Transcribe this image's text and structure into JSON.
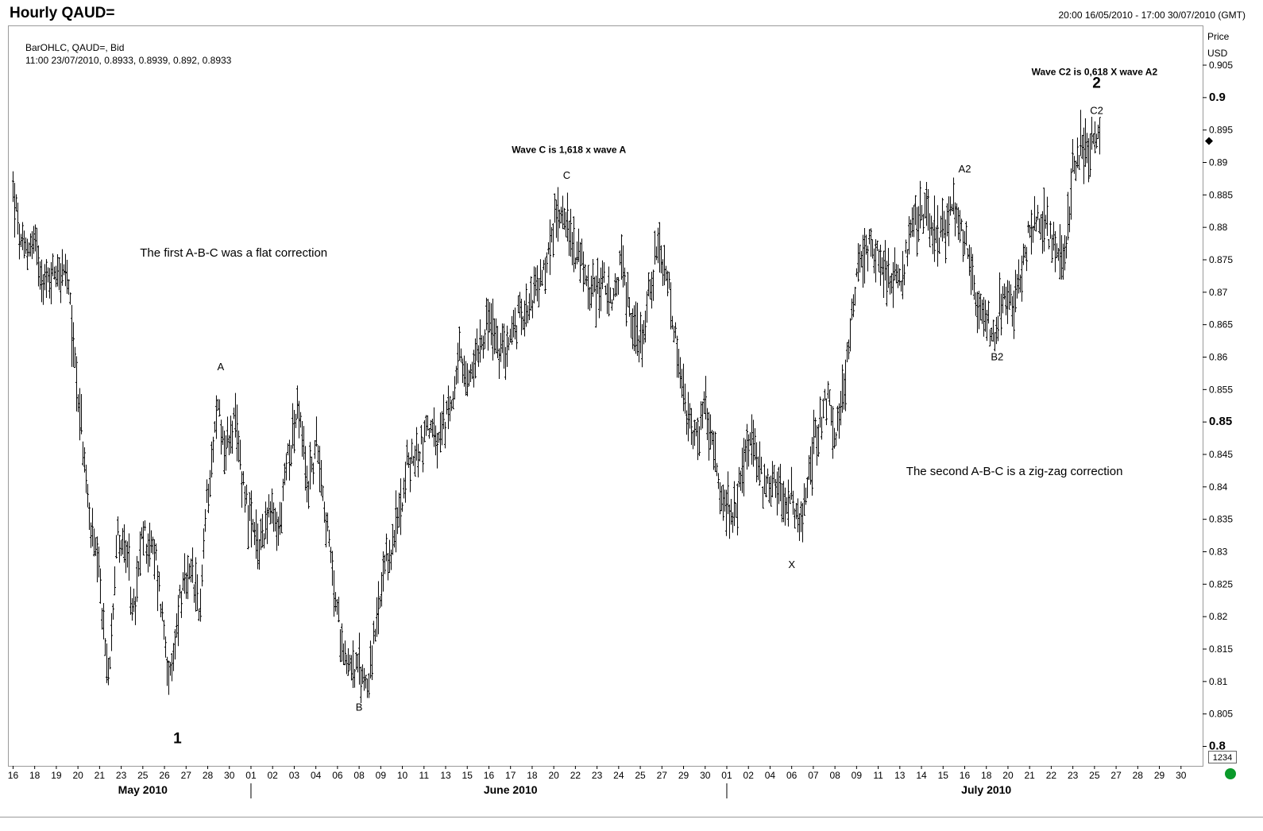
{
  "header": {
    "title": "Hourly QAUD=",
    "date_range": "20:00 16/05/2010 - 17:00 30/07/2010 (GMT)"
  },
  "legend": {
    "line1": "BarOHLC, QAUD=, Bid",
    "line2": "11:00 23/07/2010, 0.8933, 0.8939, 0.892, 0.8933"
  },
  "price_axis": {
    "label": "Price",
    "unit": "USD"
  },
  "cursor_box": "1234",
  "colors": {
    "bars": "#000000",
    "frame": "#9a9a9a",
    "status": "#0a9a2a"
  },
  "icons": [
    "last-price-marker-icon",
    "status-dot-icon"
  ],
  "chart_data": {
    "type": "ohlc",
    "title": "Hourly QAUD=",
    "xlabel": "",
    "ylabel": "Price USD",
    "ylim": [
      0.797,
      0.911
    ],
    "y_ticks": [
      0.8,
      0.805,
      0.81,
      0.815,
      0.82,
      0.825,
      0.83,
      0.835,
      0.84,
      0.845,
      0.85,
      0.855,
      0.86,
      0.865,
      0.87,
      0.875,
      0.88,
      0.885,
      0.89,
      0.895,
      0.9,
      0.905
    ],
    "y_tick_labels": [
      "0.8",
      "0.805",
      "0.81",
      "0.815",
      "0.82",
      "0.825",
      "0.83",
      "0.835",
      "0.84",
      "0.845",
      "0.85",
      "0.855",
      "0.86",
      "0.865",
      "0.87",
      "0.875",
      "0.88",
      "0.885",
      "0.89",
      "0.895",
      "0.9",
      "0.905"
    ],
    "y_bold_ticks": [
      0.8,
      0.85,
      0.9
    ],
    "x_ticks": [
      {
        "day": 16,
        "label": "16"
      },
      {
        "day": 17,
        "label": "18"
      },
      {
        "day": 18,
        "label": "19"
      },
      {
        "day": 19,
        "label": "20"
      },
      {
        "day": 20,
        "label": "21"
      },
      {
        "day": 21,
        "label": "23"
      },
      {
        "day": 22,
        "label": "25"
      },
      {
        "day": 23,
        "label": "26"
      },
      {
        "day": 24,
        "label": "27"
      },
      {
        "day": 25,
        "label": "28"
      },
      {
        "day": 26,
        "label": "30"
      },
      {
        "day": 27,
        "label": "01"
      },
      {
        "day": 28,
        "label": "02"
      },
      {
        "day": 29,
        "label": "03"
      },
      {
        "day": 30,
        "label": "04"
      },
      {
        "day": 31,
        "label": "06"
      },
      {
        "day": 32,
        "label": "08"
      },
      {
        "day": 33,
        "label": "09"
      },
      {
        "day": 34,
        "label": "10"
      },
      {
        "day": 35,
        "label": "11"
      },
      {
        "day": 36,
        "label": "13"
      },
      {
        "day": 37,
        "label": "15"
      },
      {
        "day": 38,
        "label": "16"
      },
      {
        "day": 39,
        "label": "17"
      },
      {
        "day": 40,
        "label": "18"
      },
      {
        "day": 41,
        "label": "20"
      },
      {
        "day": 42,
        "label": "22"
      },
      {
        "day": 43,
        "label": "23"
      },
      {
        "day": 44,
        "label": "24"
      },
      {
        "day": 45,
        "label": "25"
      },
      {
        "day": 46,
        "label": "27"
      },
      {
        "day": 47,
        "label": "29"
      },
      {
        "day": 48,
        "label": "30"
      },
      {
        "day": 49,
        "label": "01"
      },
      {
        "day": 50,
        "label": "02"
      },
      {
        "day": 51,
        "label": "04"
      },
      {
        "day": 52,
        "label": "06"
      },
      {
        "day": 53,
        "label": "07"
      },
      {
        "day": 54,
        "label": "08"
      },
      {
        "day": 55,
        "label": "09"
      },
      {
        "day": 56,
        "label": "11"
      },
      {
        "day": 57,
        "label": "13"
      },
      {
        "day": 58,
        "label": "14"
      },
      {
        "day": 59,
        "label": "15"
      },
      {
        "day": 60,
        "label": "16"
      },
      {
        "day": 61,
        "label": "18"
      },
      {
        "day": 62,
        "label": "20"
      },
      {
        "day": 63,
        "label": "21"
      },
      {
        "day": 64,
        "label": "22"
      },
      {
        "day": 65,
        "label": "23"
      },
      {
        "day": 66,
        "label": "25"
      },
      {
        "day": 67,
        "label": "27"
      },
      {
        "day": 68,
        "label": "28"
      },
      {
        "day": 69,
        "label": "29"
      },
      {
        "day": 70,
        "label": "30"
      }
    ],
    "months": [
      {
        "label": "May 2010",
        "day": 22
      },
      {
        "label": "June 2010",
        "day": 39,
        "separator_day": 27
      },
      {
        "label": "July 2010",
        "day": 61,
        "separator_day": 49
      }
    ],
    "x_range": [
      15.8,
      71
    ],
    "price_path": [
      [
        16.0,
        0.886
      ],
      [
        16.4,
        0.876
      ],
      [
        17.0,
        0.878
      ],
      [
        17.5,
        0.871
      ],
      [
        18.0,
        0.874
      ],
      [
        18.5,
        0.872
      ],
      [
        19.0,
        0.855
      ],
      [
        19.5,
        0.836
      ],
      [
        20.0,
        0.825
      ],
      [
        20.4,
        0.81
      ],
      [
        20.8,
        0.833
      ],
      [
        21.2,
        0.83
      ],
      [
        21.6,
        0.82
      ],
      [
        22.0,
        0.833
      ],
      [
        22.6,
        0.829
      ],
      [
        23.3,
        0.809
      ],
      [
        23.7,
        0.823
      ],
      [
        24.3,
        0.826
      ],
      [
        24.6,
        0.82
      ],
      [
        25.0,
        0.84
      ],
      [
        25.5,
        0.853
      ],
      [
        25.8,
        0.845
      ],
      [
        26.2,
        0.85
      ],
      [
        26.6,
        0.842
      ],
      [
        27.0,
        0.834
      ],
      [
        27.3,
        0.83
      ],
      [
        27.8,
        0.836
      ],
      [
        28.3,
        0.833
      ],
      [
        28.7,
        0.845
      ],
      [
        29.2,
        0.852
      ],
      [
        29.6,
        0.84
      ],
      [
        30.1,
        0.847
      ],
      [
        30.5,
        0.834
      ],
      [
        31.0,
        0.82
      ],
      [
        31.4,
        0.814
      ],
      [
        31.8,
        0.812
      ],
      [
        32.4,
        0.81
      ],
      [
        32.8,
        0.818
      ],
      [
        33.2,
        0.827
      ],
      [
        33.7,
        0.833
      ],
      [
        34.2,
        0.843
      ],
      [
        34.7,
        0.845
      ],
      [
        35.2,
        0.85
      ],
      [
        35.6,
        0.846
      ],
      [
        36.2,
        0.852
      ],
      [
        36.6,
        0.86
      ],
      [
        37.0,
        0.855
      ],
      [
        37.5,
        0.862
      ],
      [
        38.0,
        0.866
      ],
      [
        38.5,
        0.86
      ],
      [
        39.0,
        0.863
      ],
      [
        39.5,
        0.867
      ],
      [
        40.1,
        0.87
      ],
      [
        40.5,
        0.872
      ],
      [
        41.0,
        0.88
      ],
      [
        41.4,
        0.884
      ],
      [
        41.8,
        0.878
      ],
      [
        42.3,
        0.874
      ],
      [
        42.8,
        0.87
      ],
      [
        43.3,
        0.872
      ],
      [
        43.7,
        0.867
      ],
      [
        44.1,
        0.875
      ],
      [
        44.6,
        0.866
      ],
      [
        45.0,
        0.862
      ],
      [
        45.4,
        0.87
      ],
      [
        45.8,
        0.876
      ],
      [
        46.3,
        0.871
      ],
      [
        46.7,
        0.86
      ],
      [
        47.2,
        0.85
      ],
      [
        47.6,
        0.847
      ],
      [
        48.0,
        0.853
      ],
      [
        48.5,
        0.842
      ],
      [
        48.9,
        0.837
      ],
      [
        49.3,
        0.834
      ],
      [
        49.8,
        0.845
      ],
      [
        50.2,
        0.847
      ],
      [
        50.7,
        0.84
      ],
      [
        51.2,
        0.842
      ],
      [
        51.6,
        0.838
      ],
      [
        52.0,
        0.838
      ],
      [
        52.4,
        0.833
      ],
      [
        52.8,
        0.842
      ],
      [
        53.2,
        0.85
      ],
      [
        53.7,
        0.854
      ],
      [
        54.0,
        0.846
      ],
      [
        54.4,
        0.855
      ],
      [
        54.7,
        0.865
      ],
      [
        55.1,
        0.875
      ],
      [
        55.5,
        0.877
      ],
      [
        56.0,
        0.876
      ],
      [
        56.5,
        0.873
      ],
      [
        57.0,
        0.872
      ],
      [
        57.5,
        0.878
      ],
      [
        58.0,
        0.883
      ],
      [
        58.5,
        0.88
      ],
      [
        59.0,
        0.879
      ],
      [
        59.5,
        0.883
      ],
      [
        60.0,
        0.878
      ],
      [
        60.5,
        0.87
      ],
      [
        61.0,
        0.866
      ],
      [
        61.4,
        0.864
      ],
      [
        61.8,
        0.869
      ],
      [
        62.3,
        0.868
      ],
      [
        62.8,
        0.877
      ],
      [
        63.3,
        0.882
      ],
      [
        63.8,
        0.88
      ],
      [
        64.2,
        0.876
      ],
      [
        64.6,
        0.874
      ],
      [
        65.0,
        0.889
      ],
      [
        65.4,
        0.893
      ],
      [
        65.8,
        0.891
      ],
      [
        66.1,
        0.894
      ],
      [
        66.3,
        0.892
      ]
    ],
    "annotations": [
      {
        "text": "The first A-B-C was a flat correction",
        "x": 26.2,
        "y": 0.8755,
        "size": "normal",
        "anchor": "middle"
      },
      {
        "text": "Wave C is 1,618 x wave A",
        "x": 41.7,
        "y": 0.8915,
        "size": "small-bold",
        "anchor": "middle"
      },
      {
        "text": "Wave C2 is 0,618 X wave A2",
        "x": 66.0,
        "y": 0.9035,
        "size": "small-bold",
        "anchor": "middle"
      },
      {
        "text": "The second A-B-C is a zig-zag correction",
        "x": 62.3,
        "y": 0.8418,
        "size": "normal",
        "anchor": "middle"
      }
    ],
    "wave_labels": [
      {
        "text": "1",
        "x": 23.6,
        "y": 0.8005,
        "bold": true
      },
      {
        "text": "A",
        "x": 25.6,
        "y": 0.858,
        "bold": false
      },
      {
        "text": "B",
        "x": 32.0,
        "y": 0.8055,
        "bold": false
      },
      {
        "text": "C",
        "x": 41.6,
        "y": 0.8875,
        "bold": false
      },
      {
        "text": "X",
        "x": 52.0,
        "y": 0.8275,
        "bold": false
      },
      {
        "text": "A2",
        "x": 60.0,
        "y": 0.8885,
        "bold": false
      },
      {
        "text": "B2",
        "x": 61.5,
        "y": 0.8595,
        "bold": false
      },
      {
        "text": "2",
        "x": 66.1,
        "y": 0.9015,
        "bold": true
      },
      {
        "text": "C2",
        "x": 66.1,
        "y": 0.8975,
        "bold": false
      }
    ],
    "last_price": 0.8933,
    "grid": false,
    "legend": "top-left"
  }
}
